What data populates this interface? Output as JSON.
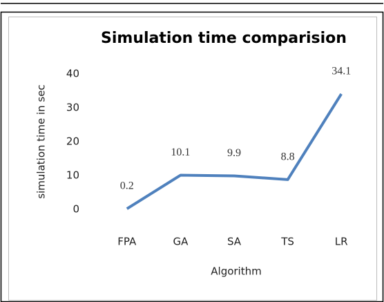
{
  "chart_data": {
    "type": "line",
    "title": "Simulation time comparision",
    "x_label": "Algorithm",
    "y_label": "simulation time  in sec",
    "categories": [
      "FPA",
      "GA",
      "SA",
      "TS",
      "LR"
    ],
    "values": [
      0.2,
      10.1,
      9.9,
      8.8,
      34.1
    ],
    "color": "#4f81bd",
    "ylim": [
      0,
      40
    ],
    "yticks": [
      0,
      10,
      20,
      30,
      40
    ],
    "grid": false
  }
}
